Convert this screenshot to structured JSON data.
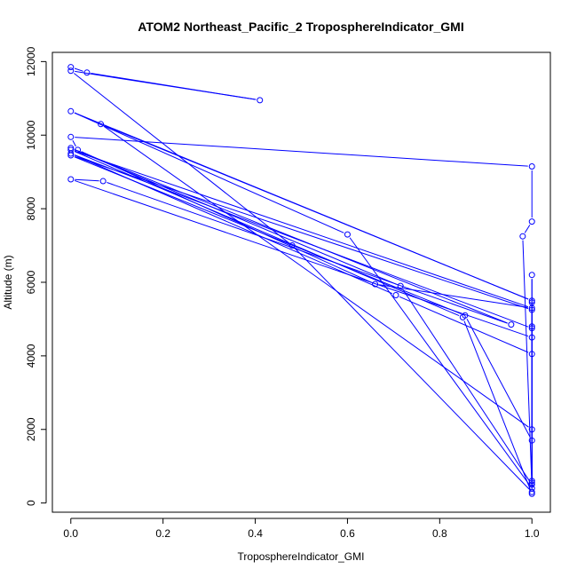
{
  "chart_data": {
    "type": "scatter",
    "title": "ATOM2 Northeast_Pacific_2 TroposphereIndicator_GMI",
    "xlabel": "TroposphereIndicator_GMI",
    "ylabel": "Altitude (m)",
    "xlim": [
      -0.04,
      1.04
    ],
    "ylim": [
      -250,
      12250
    ],
    "xticks": [
      0,
      0.2,
      0.4,
      0.6,
      0.8,
      1
    ],
    "xtick_labels": [
      "0.0",
      "0.2",
      "0.4",
      "0.6",
      "0.8",
      "1.0"
    ],
    "yticks": [
      0,
      2000,
      4000,
      6000,
      8000,
      10000,
      12000
    ],
    "ytick_labels": [
      "0",
      "2000",
      "4000",
      "6000",
      "8000",
      "10000",
      "12000"
    ],
    "grid": false,
    "color": "#0000ff",
    "marker": "open-circle",
    "series": [
      {
        "x": [
          0,
          0.035,
          0.41,
          0,
          0.48,
          1,
          1,
          0.065,
          1,
          0,
          0.6,
          1,
          0.98,
          1,
          1,
          0,
          0.015,
          0.66,
          1,
          0,
          0.85,
          1,
          1,
          1,
          0,
          0.705,
          1,
          1,
          0,
          0.07,
          0.955,
          0,
          0.715,
          1,
          1,
          0,
          0.855,
          1,
          1,
          1,
          1,
          1
        ],
        "y": [
          11850,
          11700,
          10950,
          11750,
          7000,
          300,
          2000,
          10300,
          5500,
          10650,
          7300,
          400,
          7250,
          7650,
          9150,
          9950,
          9600,
          5950,
          5300,
          9600,
          5050,
          250,
          4800,
          4750,
          9500,
          5650,
          4050,
          4500,
          8800,
          8750,
          4850,
          9650,
          5900,
          500,
          5250,
          9450,
          5100,
          1700,
          6200,
          600,
          5450,
          550
        ]
      }
    ]
  }
}
